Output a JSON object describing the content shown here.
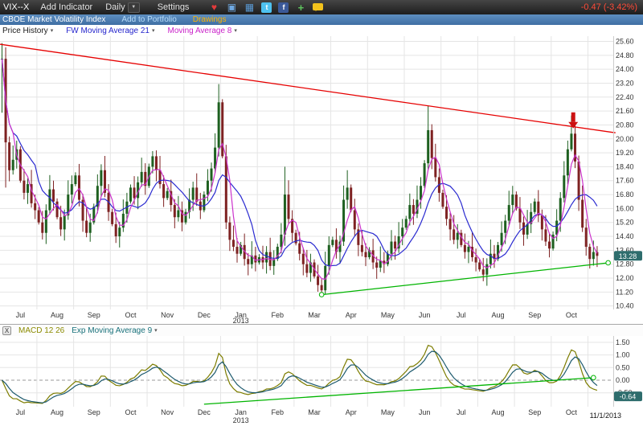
{
  "toolbar": {
    "symbol": "VIX--X",
    "menus": [
      "Add Indicator",
      "Daily",
      "Settings"
    ],
    "quote_change": "-0.47 (-3.42%)"
  },
  "subheader": {
    "title": "CBOE Market Volatility Index",
    "add_to_portfolio": "Add to Portfolio",
    "drawings": "Drawings"
  },
  "legend": {
    "price_history": "Price History",
    "ma21": "FW Moving Average 21",
    "ma8": "Moving Average 8"
  },
  "macd_header": {
    "close": "X",
    "macd_label": "MACD 12 26",
    "ema_label": "Exp Moving Average 9"
  },
  "glyphs": {
    "dropdown": "▼",
    "caret": "▾",
    "heart": "♥",
    "window": "▣",
    "grid": "▦",
    "twitter": "t",
    "facebook": "f",
    "plus": "+"
  },
  "chart_data": {
    "type": "candlestick",
    "title": "CBOE Market Volatility Index (VIX--X) daily candles with MACD sub-chart",
    "x_months": [
      "Jul",
      "Aug",
      "Sep",
      "Oct",
      "Nov",
      "Dec",
      "Jan",
      "Feb",
      "Mar",
      "Apr",
      "May",
      "Jun",
      "Jul",
      "Aug",
      "Sep",
      "Oct"
    ],
    "bars_per_month": 10,
    "year_label": "2013",
    "year_under_month_index": 6,
    "last_date_label": "11/1/2013",
    "colors": {
      "up_candle": "#1e6020",
      "down_candle": "#7e2222",
      "grid": "#e5e5e5",
      "axis_text": "#333333",
      "badge_bg": "#2e6d6d"
    },
    "price_panel": {
      "ylim": [
        10.2,
        25.9
      ],
      "yticks": [
        25.6,
        24.8,
        24.0,
        23.2,
        22.4,
        21.6,
        20.8,
        20.0,
        19.2,
        18.4,
        17.6,
        16.8,
        16.0,
        15.2,
        14.4,
        13.6,
        12.8,
        12.0,
        11.2,
        10.4
      ],
      "last_price_label": "13.28",
      "closes": [
        24.6,
        19.8,
        18.2,
        18.8,
        19.4,
        17.6,
        16.9,
        17.4,
        16.3,
        15.9,
        15.2,
        14.6,
        15.9,
        17.1,
        16.4,
        15.5,
        14.8,
        15.6,
        16.8,
        17.4,
        17.9,
        16.5,
        15.3,
        14.6,
        15.2,
        16.1,
        17.3,
        18.2,
        16.9,
        15.8,
        15.1,
        14.4,
        14.9,
        15.7,
        16.4,
        17.2,
        16.6,
        17.5,
        18.1,
        17.3,
        18.4,
        19.0,
        18.2,
        17.4,
        16.6,
        17.0,
        16.2,
        15.5,
        15.9,
        15.2,
        15.8,
        16.5,
        17.2,
        16.4,
        15.9,
        16.8,
        17.6,
        18.3,
        19.5,
        22.1,
        19.0,
        15.2,
        14.2,
        13.8,
        13.4,
        13.9,
        13.1,
        12.8,
        13.3,
        12.9,
        13.2,
        12.9,
        13.5,
        12.7,
        13.1,
        13.8,
        14.5,
        16.8,
        15.4,
        14.6,
        14.0,
        13.4,
        12.8,
        12.3,
        12.9,
        12.1,
        11.6,
        11.3,
        12.7,
        13.9,
        14.2,
        13.5,
        14.1,
        16.5,
        17.2,
        15.9,
        14.8,
        13.9,
        13.5,
        13.2,
        13.6,
        12.9,
        12.6,
        13.0,
        12.8,
        13.4,
        14.1,
        13.7,
        14.4,
        14.9,
        15.4,
        16.2,
        15.7,
        16.5,
        17.3,
        18.6,
        20.5,
        18.9,
        17.8,
        16.9,
        16.1,
        15.4,
        14.8,
        14.2,
        14.6,
        13.9,
        13.5,
        13.8,
        13.2,
        12.9,
        12.5,
        12.2,
        12.8,
        13.4,
        13.1,
        13.9,
        14.6,
        15.3,
        16.2,
        16.8,
        16.0,
        15.2,
        14.5,
        15.1,
        15.8,
        16.4,
        15.6,
        14.8,
        14.1,
        13.7,
        14.5,
        15.3,
        16.6,
        17.9,
        19.4,
        20.3,
        18.7,
        16.5,
        14.9,
        13.8,
        13.1,
        13.5,
        13.28
      ],
      "wick_overrides": {
        "0": {
          "high": 25.5,
          "low": 21.5
        },
        "1": {
          "low": 17.2
        },
        "41": {
          "high": 19.3
        },
        "59": {
          "high": 23.15
        },
        "77": {
          "high": 18.4
        },
        "87": {
          "low": 11.05
        },
        "94": {
          "high": 18.2
        },
        "116": {
          "high": 21.9
        },
        "155": {
          "high": 21.34
        },
        "160": {
          "low": 12.55
        }
      },
      "ma_series": [
        {
          "label": "FW Moving Average 21",
          "color": "#2a2ad0",
          "window_bars": 10
        },
        {
          "label": "Moving Average 8",
          "color": "#cc33cc",
          "window_bars": 4
        }
      ],
      "trendlines": [
        {
          "color": "#e60000",
          "x1_bar": -1,
          "y1": 25.45,
          "x2_bar": 167,
          "y2": 20.35,
          "endpoints": false
        },
        {
          "color": "#00b400",
          "x1_bar": 87,
          "y1": 11.05,
          "x2_bar": 165,
          "y2": 12.88,
          "endpoints": true
        }
      ],
      "annotation_arrow": {
        "bar": 155.5,
        "tip_price": 20.6,
        "color": "#cc1111"
      }
    },
    "macd_panel": {
      "ylim": [
        -1.05,
        1.75
      ],
      "yticks": [
        1.5,
        1.0,
        0.5,
        0.0,
        -0.5
      ],
      "last_value_label": "-0.64",
      "fast_bars": 6,
      "slow_bars": 13,
      "signal_bars": 4,
      "peak_pos": 1.38,
      "peak_neg": -0.92,
      "colors": {
        "macd": "#7d7d00",
        "signal": "#1d5a6e"
      },
      "trendline": {
        "color": "#00b400",
        "x1_bar": 55,
        "y1": -0.95,
        "x2_bar": 161,
        "y2": 0.1,
        "endpoints": true
      },
      "zero_line_dashed": true
    }
  }
}
